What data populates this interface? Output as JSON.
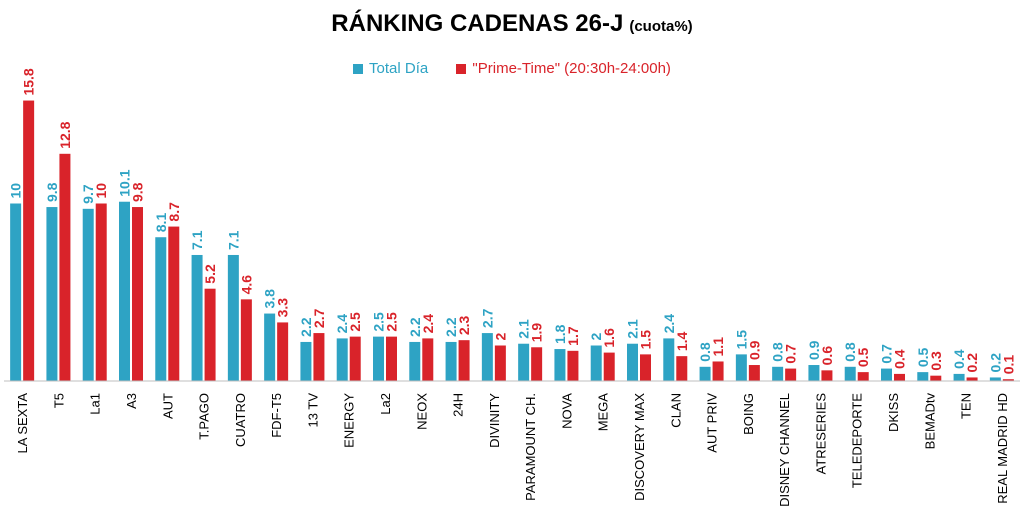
{
  "chart_data": {
    "type": "bar",
    "title": "RÁNKING CADENAS 26-J",
    "subtitle": "(cuota%)",
    "categories": [
      "LA SEXTA",
      "T5",
      "La1",
      "A3",
      "AUT",
      "T.PAGO",
      "CUATRO",
      "FDF-T5",
      "13 TV",
      "ENERGY",
      "La2",
      "NEOX",
      "24H",
      "DIVINITY",
      "PARAMOUNT CH.",
      "NOVA",
      "MEGA",
      "DISCOVERY MAX",
      "CLAN",
      "AUT PRIV",
      "BOING",
      "DISNEY CHANNEL",
      "ATRESERIES",
      "TELEDEPORTE",
      "DKISS",
      "BEMADtv",
      "TEN",
      "REAL MADRID HD"
    ],
    "series": [
      {
        "name": "Total Día",
        "color": "#2ea3c4",
        "values": [
          10,
          9.8,
          9.7,
          10.1,
          8.1,
          7.1,
          7.1,
          3.8,
          2.2,
          2.4,
          2.5,
          2.2,
          2.2,
          2.7,
          2.1,
          1.8,
          2,
          2.1,
          2.4,
          0.8,
          1.5,
          0.8,
          0.9,
          0.8,
          0.7,
          0.5,
          0.4,
          0.2
        ]
      },
      {
        "name": "\"Prime-Time\" (20:30h-24:00h)",
        "color": "#d9232a",
        "values": [
          15.8,
          12.8,
          10,
          9.8,
          8.7,
          5.2,
          4.6,
          3.3,
          2.7,
          2.5,
          2.5,
          2.4,
          2.3,
          2,
          1.9,
          1.7,
          1.6,
          1.5,
          1.4,
          1.1,
          0.9,
          0.7,
          0.6,
          0.5,
          0.4,
          0.3,
          0.2,
          0.1
        ]
      }
    ],
    "ylim": [
      0,
      16
    ],
    "grid": false,
    "legend_position": "top-center"
  }
}
